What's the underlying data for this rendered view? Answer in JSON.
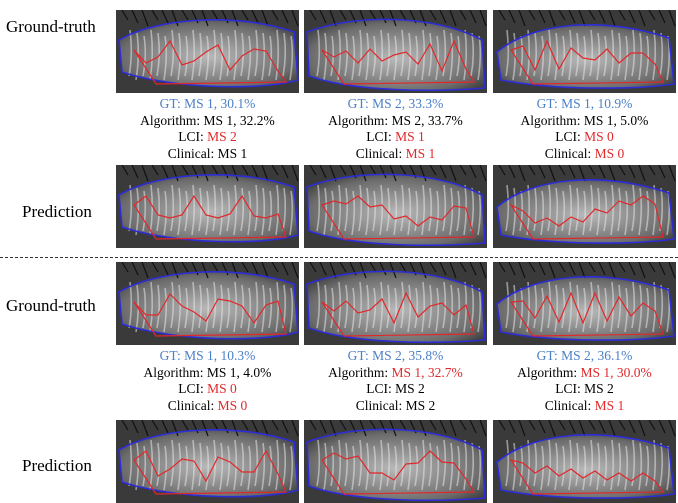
{
  "labels": {
    "ground_truth": "Ground-truth",
    "prediction": "Prediction"
  },
  "colors": {
    "gt_text": "#4a7fc7",
    "mismatch": "#e0282b",
    "outer_contour": "#2d2dd8",
    "inner_contour": "#e0282b"
  },
  "caption_prefix": {
    "algorithm": "Algorithm: ",
    "lci": "LCI: ",
    "clinical": "Clinical: "
  },
  "groups": [
    {
      "columns": [
        {
          "gt": "GT: MS 1, 30.1%",
          "algorithm": "MS 1, 32.2%",
          "algorithm_mismatch": false,
          "lci": "MS 2",
          "lci_mismatch": true,
          "clinical": "MS 1",
          "clinical_mismatch": false
        },
        {
          "gt": "GT: MS 2, 33.3%",
          "algorithm": "MS 2, 33.7%",
          "algorithm_mismatch": false,
          "lci": "MS 1",
          "lci_mismatch": true,
          "clinical": "MS 1",
          "clinical_mismatch": true
        },
        {
          "gt": "GT: MS 1, 10.9%",
          "algorithm": "MS 1, 5.0%",
          "algorithm_mismatch": false,
          "lci": "MS 0",
          "lci_mismatch": true,
          "clinical": "MS 0",
          "clinical_mismatch": true
        }
      ]
    },
    {
      "columns": [
        {
          "gt": "GT: MS 1, 10.3%",
          "algorithm": "MS 1, 4.0%",
          "algorithm_mismatch": false,
          "lci": "MS 0",
          "lci_mismatch": true,
          "clinical": "MS 0",
          "clinical_mismatch": true
        },
        {
          "gt": "GT: MS 2, 35.8%",
          "algorithm": "MS 1, 32.7%",
          "algorithm_mismatch": true,
          "lci": "MS 2",
          "lci_mismatch": false,
          "clinical": "MS 2",
          "clinical_mismatch": false
        },
        {
          "gt": "GT: MS 2, 36.1%",
          "algorithm": "MS 1, 30.0%",
          "algorithm_mismatch": true,
          "lci": "MS 2",
          "lci_mismatch": false,
          "clinical": "MS 1",
          "clinical_mismatch": true
        }
      ]
    }
  ]
}
